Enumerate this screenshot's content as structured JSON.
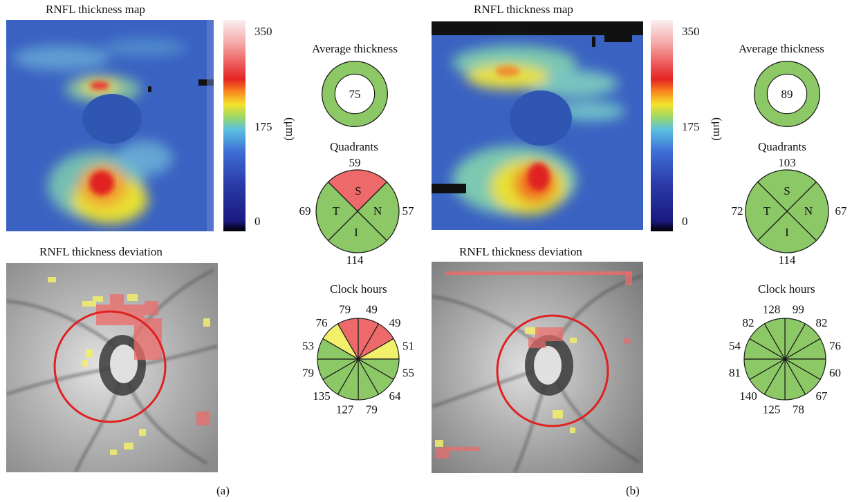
{
  "colors": {
    "normal": "#8cc866",
    "borderline": "#f2ef6a",
    "abnormal": "#ee6a6a",
    "outline": "#1a1a1a"
  },
  "panels": [
    {
      "map_title": "RNFL thickness map",
      "deviation_title": "RNFL thickness deviation",
      "scale": {
        "max": "350",
        "mid": "175",
        "min": "0",
        "unit": "(μm)"
      },
      "average": {
        "title": "Average thickness",
        "value": "75",
        "status": "normal"
      },
      "quadrants": {
        "title": "Quadrants",
        "S": {
          "label": "S",
          "value": "59",
          "status": "abnormal"
        },
        "N": {
          "label": "N",
          "value": "57",
          "status": "normal"
        },
        "I": {
          "label": "I",
          "value": "114",
          "status": "normal"
        },
        "T": {
          "label": "T",
          "value": "69",
          "status": "normal"
        }
      },
      "clock": {
        "title": "Clock hours",
        "values": [
          "49",
          "49",
          "51",
          "55",
          "64",
          "79",
          "127",
          "135",
          "79",
          "53",
          "76",
          "79"
        ],
        "status": [
          "abnormal",
          "abnormal",
          "borderline",
          "normal",
          "normal",
          "normal",
          "normal",
          "normal",
          "normal",
          "normal",
          "borderline",
          "abnormal"
        ]
      },
      "caption": "(a)"
    },
    {
      "map_title": "RNFL thickness map",
      "deviation_title": "RNFL thickness deviation",
      "scale": {
        "max": "350",
        "mid": "175",
        "min": "0",
        "unit": "(μm)"
      },
      "average": {
        "title": "Average thickness",
        "value": "89",
        "status": "normal"
      },
      "quadrants": {
        "title": "Quadrants",
        "S": {
          "label": "S",
          "value": "103",
          "status": "normal"
        },
        "N": {
          "label": "N",
          "value": "67",
          "status": "normal"
        },
        "I": {
          "label": "I",
          "value": "114",
          "status": "normal"
        },
        "T": {
          "label": "T",
          "value": "72",
          "status": "normal"
        }
      },
      "clock": {
        "title": "Clock hours",
        "values": [
          "99",
          "82",
          "76",
          "60",
          "67",
          "78",
          "125",
          "140",
          "81",
          "54",
          "82",
          "128"
        ],
        "status": [
          "normal",
          "normal",
          "normal",
          "normal",
          "normal",
          "normal",
          "normal",
          "normal",
          "normal",
          "normal",
          "normal",
          "normal"
        ]
      },
      "caption": "(b)"
    }
  ]
}
